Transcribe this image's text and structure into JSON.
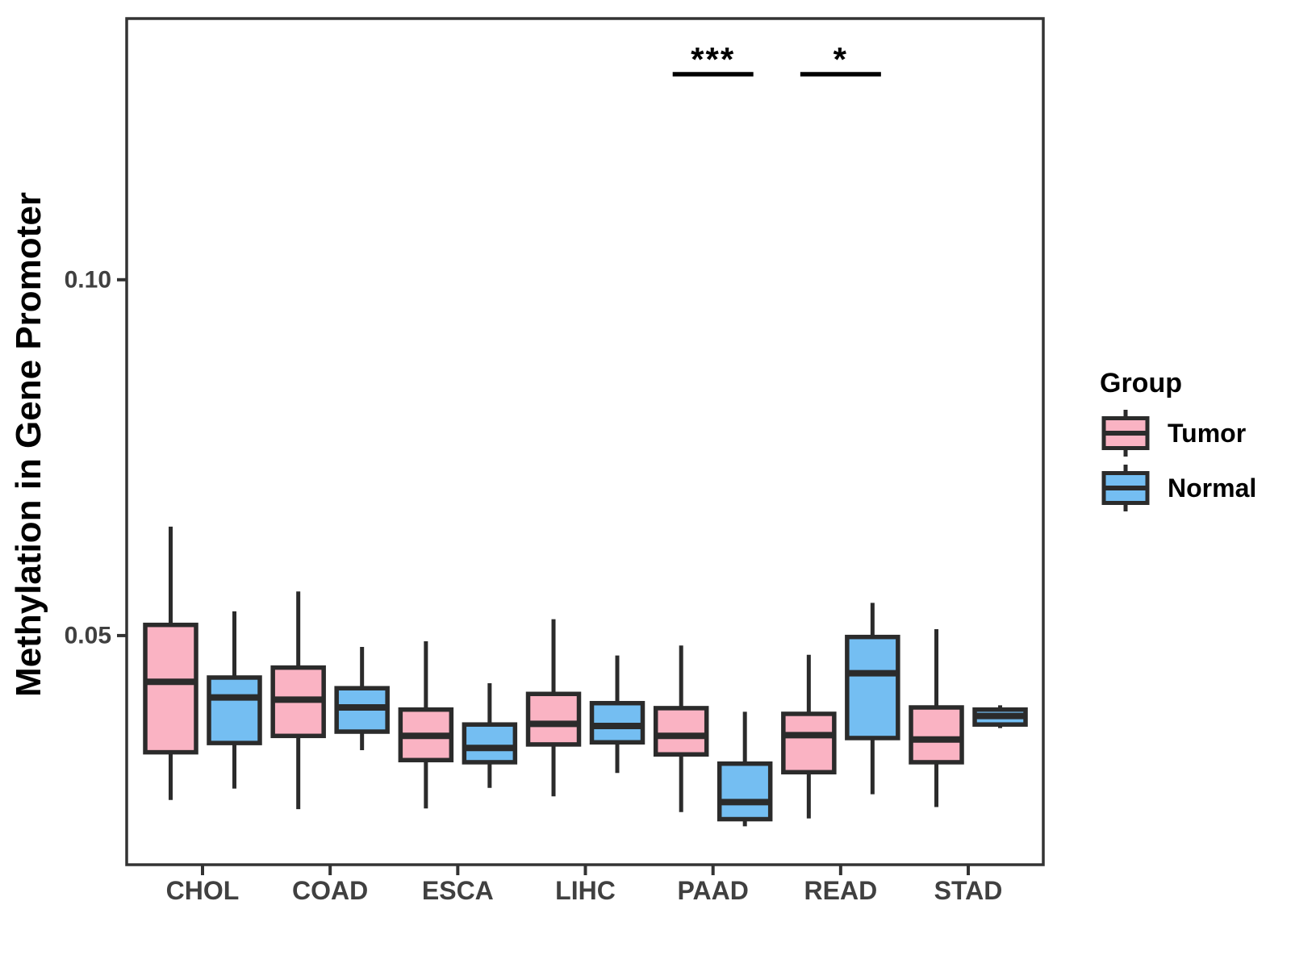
{
  "chart_data": {
    "type": "boxplot",
    "title": "",
    "ylabel": "Methylation in Gene Promoter",
    "xlabel": "",
    "categories": [
      "CHOL",
      "COAD",
      "ESCA",
      "LIHC",
      "PAAD",
      "READ",
      "STAD"
    ],
    "groups": [
      "Tumor",
      "Normal"
    ],
    "colors": {
      "Tumor": "#FAB3C3",
      "Normal": "#74BEF2",
      "box_border": "#2B2B2B",
      "axis": "#333333",
      "tick_label": "#404040",
      "text": "#000000"
    },
    "ylim": [
      0.0178,
      0.1367
    ],
    "yticks": [
      0.05,
      0.1
    ],
    "ytick_labels": [
      "0.05",
      "0.10"
    ],
    "grid": false,
    "legend_position": "right",
    "legend": {
      "title": "Group",
      "entries": [
        {
          "label": "Tumor",
          "color": "#FAB3C3"
        },
        {
          "label": "Normal",
          "color": "#74BEF2"
        }
      ]
    },
    "series": [
      {
        "name": "Tumor",
        "boxes": [
          {
            "category": "CHOL",
            "lo": 0.0269,
            "q1": 0.0336,
            "med": 0.0435,
            "q3": 0.0515,
            "hi": 0.0653
          },
          {
            "category": "COAD",
            "lo": 0.0256,
            "q1": 0.0359,
            "med": 0.041,
            "q3": 0.0455,
            "hi": 0.0562
          },
          {
            "category": "ESCA",
            "lo": 0.0257,
            "q1": 0.0325,
            "med": 0.0359,
            "q3": 0.0396,
            "hi": 0.0492
          },
          {
            "category": "LIHC",
            "lo": 0.0274,
            "q1": 0.0347,
            "med": 0.0376,
            "q3": 0.0418,
            "hi": 0.0523
          },
          {
            "category": "PAAD",
            "lo": 0.0252,
            "q1": 0.0333,
            "med": 0.0359,
            "q3": 0.0398,
            "hi": 0.0486
          },
          {
            "category": "READ",
            "lo": 0.0243,
            "q1": 0.0308,
            "med": 0.036,
            "q3": 0.039,
            "hi": 0.0473
          },
          {
            "category": "STAD",
            "lo": 0.0259,
            "q1": 0.0322,
            "med": 0.0354,
            "q3": 0.0399,
            "hi": 0.0509
          }
        ]
      },
      {
        "name": "Normal",
        "boxes": [
          {
            "category": "CHOL",
            "lo": 0.0285,
            "q1": 0.0349,
            "med": 0.0413,
            "q3": 0.0441,
            "hi": 0.0534
          },
          {
            "category": "COAD",
            "lo": 0.0339,
            "q1": 0.0365,
            "med": 0.0399,
            "q3": 0.0426,
            "hi": 0.0484
          },
          {
            "category": "ESCA",
            "lo": 0.0286,
            "q1": 0.0322,
            "med": 0.0342,
            "q3": 0.0375,
            "hi": 0.0433
          },
          {
            "category": "LIHC",
            "lo": 0.0307,
            "q1": 0.035,
            "med": 0.0373,
            "q3": 0.0405,
            "hi": 0.0472
          },
          {
            "category": "PAAD",
            "lo": 0.0232,
            "q1": 0.0242,
            "med": 0.0266,
            "q3": 0.032,
            "hi": 0.0393
          },
          {
            "category": "READ",
            "lo": 0.0277,
            "q1": 0.0356,
            "med": 0.0447,
            "q3": 0.0498,
            "hi": 0.0546
          },
          {
            "category": "STAD",
            "lo": 0.037,
            "q1": 0.0375,
            "med": 0.0387,
            "q3": 0.0396,
            "hi": 0.0402
          }
        ]
      }
    ],
    "annotations": [
      {
        "category": "PAAD",
        "label": "***"
      },
      {
        "category": "READ",
        "label": "*"
      }
    ]
  }
}
